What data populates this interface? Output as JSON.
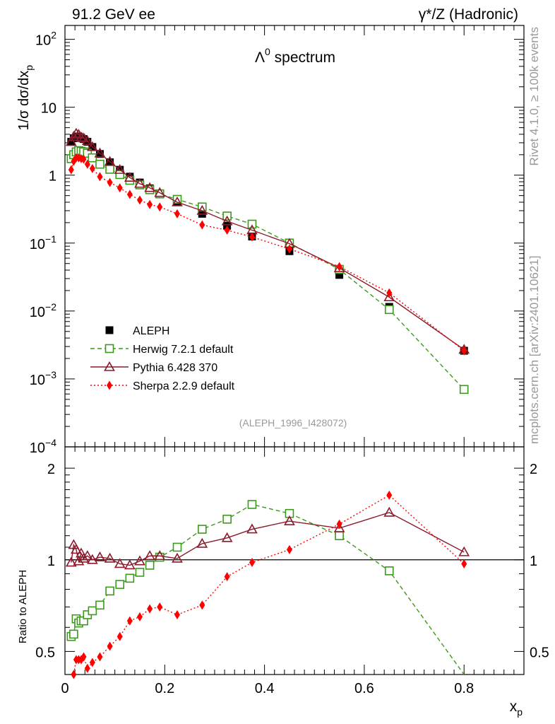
{
  "header": {
    "left": "91.2 GeV ee",
    "right": "γ*/Z (Hadronic)"
  },
  "side_labels": {
    "top": "Rivet 4.1.0, ≥ 100k events",
    "bottom": "mcplots.cern.ch [arXiv:2401.10621]"
  },
  "colors": {
    "aleph": "#000000",
    "herwig": "#3a9a1a",
    "pythia": "#8b1a2b",
    "sherpa": "#ff0000",
    "watermark": "#999999"
  },
  "chart_data": [
    {
      "id": "main",
      "type": "scatter",
      "title_main": "Λ",
      "title_sup": "0",
      "title_rest": "spectrum",
      "ylabel": "1/σ  dσ/dx_p",
      "xlabel": "x_p",
      "yscale": "log",
      "ylim": [
        0.0001,
        160
      ],
      "xlim": [
        0,
        0.92
      ],
      "y_ticks": [
        {
          "value": 100,
          "base": "10",
          "sup": "2"
        },
        {
          "value": 10,
          "base": "10",
          "sup": ""
        },
        {
          "value": 1,
          "base": "1",
          "sup": ""
        },
        {
          "value": 0.1,
          "base": "10",
          "sup": "−1"
        },
        {
          "value": 0.01,
          "base": "10",
          "sup": "−2"
        },
        {
          "value": 0.001,
          "base": "10",
          "sup": "−3"
        },
        {
          "value": 0.0001,
          "base": "10",
          "sup": "−4"
        }
      ],
      "watermark": "(ALEPH_1996_I428072)",
      "legend": [
        {
          "key": "aleph",
          "label": "ALEPH"
        },
        {
          "key": "herwig",
          "label": "Herwig 7.2.1 default"
        },
        {
          "key": "pythia",
          "label": "Pythia 6.428 370"
        },
        {
          "key": "sherpa",
          "label": "Sherpa 2.2.9 default"
        }
      ],
      "series": [
        {
          "name": "ALEPH",
          "key": "aleph",
          "marker": "filled-square",
          "line": "none",
          "x": [
            0.0125,
            0.0175,
            0.0225,
            0.0275,
            0.0325,
            0.0375,
            0.045,
            0.055,
            0.07,
            0.09,
            0.11,
            0.13,
            0.15,
            0.17,
            0.19,
            0.225,
            0.275,
            0.325,
            0.375,
            0.45,
            0.55,
            0.65,
            0.8
          ],
          "y": [
            3.1,
            3.5,
            3.7,
            3.7,
            3.55,
            3.4,
            3.1,
            2.6,
            2.05,
            1.55,
            1.2,
            0.95,
            0.78,
            0.64,
            0.54,
            0.4,
            0.27,
            0.18,
            0.125,
            0.076,
            0.034,
            0.0115,
            0.0026
          ]
        },
        {
          "name": "Herwig 7.2.1 default",
          "key": "herwig",
          "marker": "open-square",
          "line": "dashed",
          "x": [
            0.0125,
            0.0175,
            0.0225,
            0.0275,
            0.0325,
            0.0375,
            0.045,
            0.055,
            0.07,
            0.09,
            0.11,
            0.13,
            0.15,
            0.17,
            0.19,
            0.225,
            0.275,
            0.325,
            0.375,
            0.45,
            0.55,
            0.65,
            0.8
          ],
          "y": [
            1.75,
            2.0,
            2.2,
            2.3,
            2.25,
            2.2,
            2.1,
            1.8,
            1.45,
            1.22,
            1.02,
            0.84,
            0.72,
            0.61,
            0.53,
            0.44,
            0.34,
            0.25,
            0.19,
            0.1,
            0.041,
            0.0105,
            0.0007
          ]
        },
        {
          "name": "Pythia 6.428 370",
          "key": "pythia",
          "marker": "open-triangle",
          "line": "solid",
          "x": [
            0.0125,
            0.0175,
            0.0225,
            0.0275,
            0.0325,
            0.0375,
            0.045,
            0.055,
            0.07,
            0.09,
            0.11,
            0.13,
            0.15,
            0.17,
            0.19,
            0.225,
            0.275,
            0.325,
            0.375,
            0.45,
            0.55,
            0.65,
            0.8
          ],
          "y": [
            3.1,
            3.7,
            4.1,
            3.95,
            3.6,
            3.5,
            3.2,
            2.6,
            2.1,
            1.58,
            1.2,
            0.92,
            0.75,
            0.65,
            0.55,
            0.4,
            0.3,
            0.21,
            0.155,
            0.098,
            0.043,
            0.016,
            0.0027
          ]
        },
        {
          "name": "Sherpa 2.2.9 default",
          "key": "sherpa",
          "marker": "filled-diamond",
          "line": "dotted",
          "x": [
            0.0125,
            0.0175,
            0.0225,
            0.0275,
            0.0325,
            0.0375,
            0.045,
            0.055,
            0.07,
            0.09,
            0.11,
            0.13,
            0.15,
            0.17,
            0.19,
            0.225,
            0.275,
            0.325,
            0.375,
            0.45,
            0.55,
            0.65,
            0.8
          ],
          "y": [
            1.2,
            1.6,
            1.8,
            1.8,
            1.75,
            1.72,
            1.45,
            1.25,
            0.95,
            0.78,
            0.65,
            0.52,
            0.43,
            0.37,
            0.34,
            0.27,
            0.185,
            0.155,
            0.123,
            0.082,
            0.045,
            0.0185,
            0.0026
          ]
        }
      ]
    },
    {
      "id": "ratio",
      "type": "line",
      "ylabel": "Ratio to ALEPH",
      "xlabel": "x_p",
      "yscale": "log",
      "ylim": [
        0.42,
        2.35
      ],
      "xlim": [
        0,
        0.92
      ],
      "y_ticks": [
        {
          "value": 2,
          "label": "2"
        },
        {
          "value": 1,
          "label": "1"
        },
        {
          "value": 0.5,
          "label": "0.5"
        }
      ],
      "x_ticks": [
        {
          "value": 0,
          "label": "0"
        },
        {
          "value": 0.2,
          "label": "0.2"
        },
        {
          "value": 0.4,
          "label": "0.4"
        },
        {
          "value": 0.6,
          "label": "0.6"
        },
        {
          "value": 0.8,
          "label": "0.8"
        }
      ],
      "series": [
        {
          "name": "Herwig 7.2.1 default",
          "key": "herwig",
          "marker": "open-square",
          "line": "dashed",
          "x": [
            0.0125,
            0.0175,
            0.0225,
            0.0275,
            0.0325,
            0.0375,
            0.045,
            0.055,
            0.07,
            0.09,
            0.11,
            0.13,
            0.15,
            0.17,
            0.19,
            0.225,
            0.275,
            0.325,
            0.375,
            0.45,
            0.55,
            0.65,
            0.8
          ],
          "y": [
            0.56,
            0.57,
            0.64,
            0.62,
            0.63,
            0.63,
            0.66,
            0.68,
            0.71,
            0.79,
            0.83,
            0.87,
            0.91,
            0.96,
            1.02,
            1.1,
            1.26,
            1.36,
            1.52,
            1.42,
            1.2,
            0.92,
            0.27
          ]
        },
        {
          "name": "Pythia 6.428 370",
          "key": "pythia",
          "marker": "open-triangle",
          "line": "solid",
          "x": [
            0.0125,
            0.0175,
            0.0225,
            0.0275,
            0.0325,
            0.0375,
            0.045,
            0.055,
            0.07,
            0.09,
            0.11,
            0.13,
            0.15,
            0.17,
            0.19,
            0.225,
            0.275,
            0.325,
            0.375,
            0.45,
            0.55,
            0.65,
            0.8
          ],
          "y": [
            0.98,
            1.12,
            1.08,
            0.99,
            1.05,
            1.01,
            1.03,
            1.0,
            1.02,
            1.01,
            0.97,
            0.96,
            0.99,
            1.03,
            1.03,
            1.01,
            1.13,
            1.18,
            1.26,
            1.34,
            1.27,
            1.43,
            1.06
          ]
        },
        {
          "name": "Sherpa 2.2.9 default",
          "key": "sherpa",
          "marker": "filled-diamond",
          "line": "dotted",
          "x": [
            0.0125,
            0.0175,
            0.0225,
            0.0275,
            0.0325,
            0.0375,
            0.045,
            0.055,
            0.07,
            0.09,
            0.11,
            0.13,
            0.15,
            0.17,
            0.19,
            0.225,
            0.275,
            0.325,
            0.375,
            0.45,
            0.55,
            0.65,
            0.8
          ],
          "y": [
            0.38,
            0.42,
            0.47,
            0.47,
            0.47,
            0.48,
            0.44,
            0.46,
            0.48,
            0.52,
            0.56,
            0.63,
            0.65,
            0.69,
            0.7,
            0.66,
            0.71,
            0.88,
            0.98,
            1.08,
            1.31,
            1.63,
            0.97
          ]
        }
      ]
    }
  ]
}
